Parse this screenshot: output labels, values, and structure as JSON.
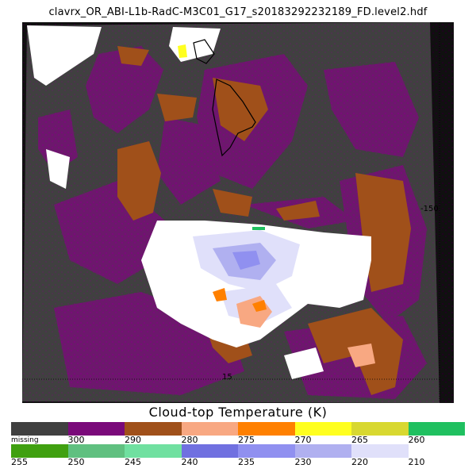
{
  "header": {
    "file_title": "clavrx_OR_ABI-L1b-RadC-M3C01_G17_s20183292232189_FD.level2.hdf"
  },
  "map": {
    "lat_label_1": "15",
    "lon_label_1": "-150",
    "colors": {
      "background": "#000000",
      "missing": "#404040",
      "coastline": "#000000",
      "graticule": "#000000"
    }
  },
  "legend": {
    "title": "Cloud-top Temperature (K)",
    "rows": [
      [
        {
          "label": "missing",
          "color": "#404040"
        },
        {
          "label": "300",
          "color": "#7a0a7a"
        },
        {
          "label": "290",
          "color": "#a0501a"
        },
        {
          "label": "280",
          "color": "#f8a882"
        },
        {
          "label": "275",
          "color": "#ff8000"
        },
        {
          "label": "270",
          "color": "#ffff20"
        },
        {
          "label": "265",
          "color": "#d8d830"
        },
        {
          "label": "260",
          "color": "#20c060"
        }
      ],
      [
        {
          "label": "255",
          "color": "#40a010"
        },
        {
          "label": "250",
          "color": "#60c080"
        },
        {
          "label": "245",
          "color": "#70e0a0"
        },
        {
          "label": "240",
          "color": "#7070e0"
        },
        {
          "label": "235",
          "color": "#9090f0"
        },
        {
          "label": "230",
          "color": "#b0b0f0"
        },
        {
          "label": "220",
          "color": "#e0e0fa"
        },
        {
          "label": "210",
          "color": "#ffffff"
        }
      ]
    ]
  }
}
